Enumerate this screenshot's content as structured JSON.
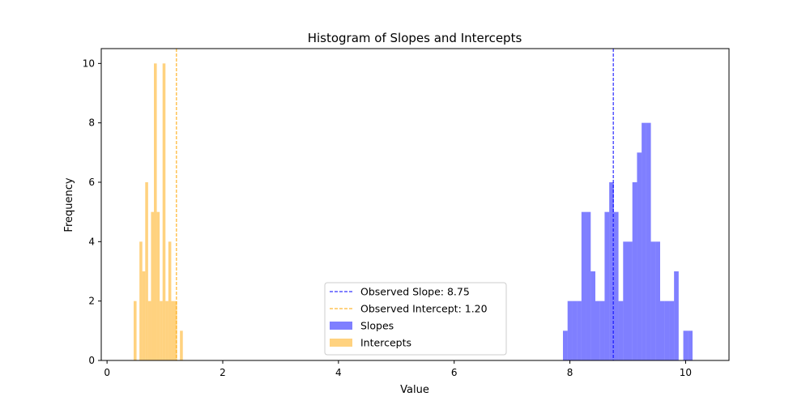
{
  "chart_data": {
    "type": "bar",
    "title": "Histogram of Slopes and Intercepts",
    "xlabel": "Value",
    "ylabel": "Frequency",
    "xlim": [
      -0.1,
      10.75
    ],
    "ylim": [
      0,
      10.5
    ],
    "xticks": [
      0,
      2,
      4,
      6,
      8,
      10
    ],
    "yticks": [
      0,
      2,
      4,
      6,
      8,
      10
    ],
    "grid": false,
    "legend_position": "lower-center",
    "series": [
      {
        "name": "Slopes",
        "color": "#0000ff",
        "opacity": 0.5,
        "bin_start": 7.88,
        "bin_width": 0.08,
        "counts": [
          1,
          2,
          2,
          2,
          5,
          5,
          3,
          2,
          2,
          5,
          6,
          5,
          2,
          4,
          4,
          6,
          7,
          8,
          8,
          4,
          4,
          2,
          2,
          2,
          3,
          0,
          1,
          1
        ]
      },
      {
        "name": "Intercepts",
        "color": "#ffa500",
        "opacity": 0.5,
        "bin_start": 0.46,
        "bin_width": 0.05,
        "counts": [
          2,
          0,
          4,
          3,
          6,
          2,
          5,
          10,
          5,
          2,
          10,
          2,
          4,
          2,
          2,
          0,
          1,
          0,
          0,
          0
        ]
      }
    ],
    "reference_lines": [
      {
        "name": "Observed Slope: 8.75",
        "x": 8.75,
        "color": "#0000ff",
        "style": "dashed"
      },
      {
        "name": "Observed Intercept: 1.20",
        "x": 1.2,
        "color": "#ffa500",
        "style": "dashed"
      }
    ]
  }
}
